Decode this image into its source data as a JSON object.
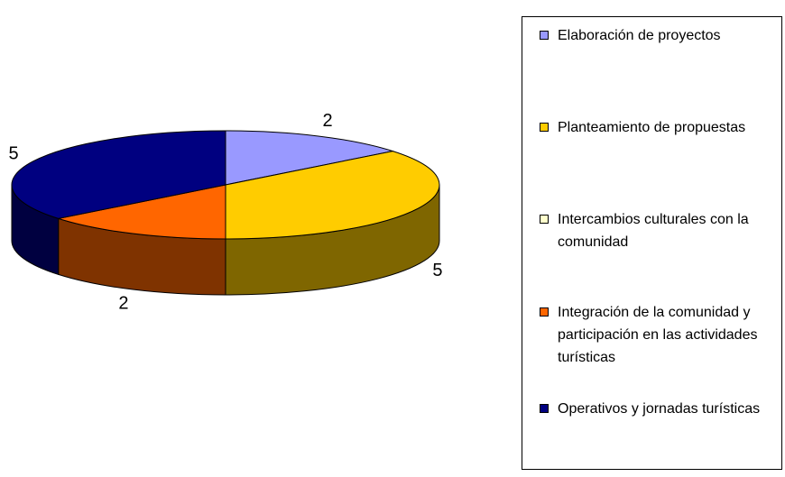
{
  "chart_data": {
    "type": "pie3d",
    "categories": [
      "Elaboración de proyectos",
      "Planteamiento de propuestas",
      "Intercambios culturales con la comunidad",
      "Integración de la comunidad y participación en las actividades turísticas",
      "Operativos y jornadas turísticas"
    ],
    "values": [
      2,
      5,
      0,
      2,
      5
    ],
    "colors": [
      "#9999ff",
      "#ffcc00",
      "#ffffcc",
      "#ff6600",
      "#000080"
    ],
    "legend": "right"
  }
}
